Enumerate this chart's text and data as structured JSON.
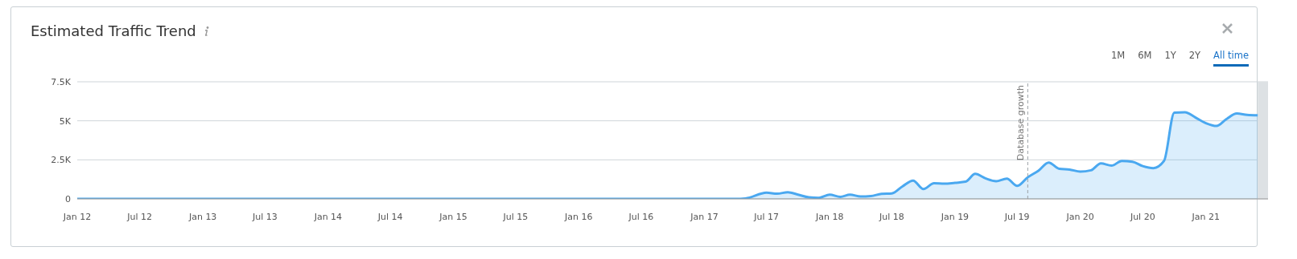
{
  "chart_data": {
    "type": "area",
    "title": "Estimated Traffic Trend",
    "annotations": [
      "1M",
      "6M",
      "1Y",
      "2Y",
      "All time"
    ],
    "x": [
      "2012-01",
      "2017-04",
      "2017-05",
      "2017-07",
      "2017-08",
      "2017-09",
      "2017-10",
      "2017-11",
      "2017-12",
      "2018-01",
      "2018-02",
      "2018-03",
      "2018-04",
      "2018-05",
      "2018-06",
      "2018-07",
      "2018-08",
      "2018-09",
      "2018-10",
      "2018-11",
      "2018-12",
      "2019-01",
      "2019-02",
      "2019-03",
      "2019-04",
      "2019-05",
      "2019-06",
      "2019-07",
      "2019-08",
      "2019-09",
      "2019-10",
      "2019-11",
      "2019-12",
      "2020-01",
      "2020-02",
      "2020-03",
      "2020-04",
      "2020-05",
      "2020-06",
      "2020-07",
      "2020-08",
      "2020-09",
      "2020-10",
      "2020-11",
      "2020-12",
      "2021-01",
      "2021-02",
      "2021-03",
      "2021-04",
      "2021-05",
      "2021-06"
    ],
    "series": [
      {
        "color": "#4aa8f0",
        "values": [
          0,
          0,
          30,
          400,
          330,
          430,
          270,
          100,
          70,
          270,
          130,
          270,
          150,
          180,
          320,
          350,
          800,
          1170,
          630,
          1000,
          970,
          1030,
          1100,
          1600,
          1300,
          1130,
          1300,
          830,
          1380,
          1800,
          2330,
          1930,
          1880,
          1750,
          1830,
          2270,
          2130,
          2430,
          2380,
          2100,
          1970,
          2430,
          5520,
          5550,
          5220,
          4850,
          4670,
          5100,
          5470,
          5380,
          5350
        ]
      }
    ],
    "xlim": [
      "2012-01",
      "2021-07"
    ],
    "xticks": [
      {
        "value": "2012-01",
        "label": "Jan 12"
      },
      {
        "value": "2012-07",
        "label": "Jul 12"
      },
      {
        "value": "2013-01",
        "label": "Jan 13"
      },
      {
        "value": "2013-07",
        "label": "Jul 13"
      },
      {
        "value": "2014-01",
        "label": "Jan 14"
      },
      {
        "value": "2014-07",
        "label": "Jul 14"
      },
      {
        "value": "2015-01",
        "label": "Jan 15"
      },
      {
        "value": "2015-07",
        "label": "Jul 15"
      },
      {
        "value": "2016-01",
        "label": "Jan 16"
      },
      {
        "value": "2016-07",
        "label": "Jul 16"
      },
      {
        "value": "2017-01",
        "label": "Jan 17"
      },
      {
        "value": "2017-07",
        "label": "Jul 17"
      },
      {
        "value": "2018-01",
        "label": "Jan 18"
      },
      {
        "value": "2018-07",
        "label": "Jul 18"
      },
      {
        "value": "2019-01",
        "label": "Jan 19"
      },
      {
        "value": "2019-07",
        "label": "Jul 19"
      },
      {
        "value": "2020-01",
        "label": "Jan 20"
      },
      {
        "value": "2020-07",
        "label": "Jul 20"
      },
      {
        "value": "2021-01",
        "label": "Jan 21"
      }
    ],
    "ylim": [
      0,
      7500
    ],
    "yticks": [
      0,
      {
        "value": 2500,
        "label": "2.5K"
      },
      {
        "value": 5000,
        "label": "5K"
      },
      {
        "value": 7500,
        "label": "7.5K"
      }
    ],
    "ref_lines": [
      {
        "axis": "x",
        "value": "2019-08",
        "label": "Database growth",
        "color": "#9aa0a6",
        "line_style": "dashed"
      }
    ],
    "bands": [
      {
        "axis": "x",
        "from": "2021-06",
        "to": "2021-07",
        "color": "#dde1e4"
      }
    ],
    "grid": "y",
    "legend": false,
    "marker": "none",
    "line_style": "solid"
  }
}
